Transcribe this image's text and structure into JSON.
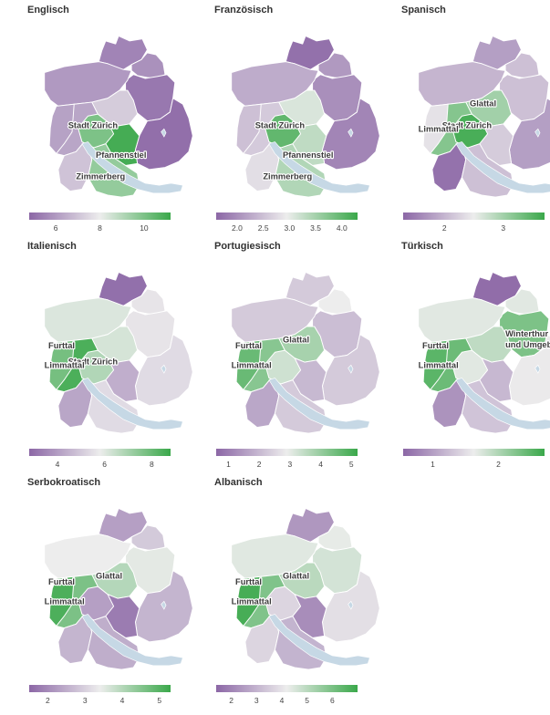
{
  "palette": {
    "low": "#8c67a6",
    "mid": "#ededed",
    "high": "#3aa84a"
  },
  "panels": [
    {
      "title": "Englisch",
      "scale": {
        "min": 4.8,
        "max": 11.2,
        "ticks": [
          6,
          8,
          10
        ]
      },
      "values": {
        "north": 5.5,
        "weinland": 5.8,
        "winterthur": 5.2,
        "unterland": 6.0,
        "furttal": 6.2,
        "glattal": 7.2,
        "limmattal": 6.3,
        "zurich": 10.0,
        "oberland": 5.0,
        "pfannenstiel": 11.0,
        "knonaueramt": 7.0,
        "zimmerberg": 9.6
      },
      "labels": [
        {
          "key": "zurich",
          "text": "Stadt Zürich"
        },
        {
          "key": "pfannenstiel",
          "text": "Pfannenstiel"
        },
        {
          "key": "zimmerberg",
          "text": "Zimmerberg"
        }
      ]
    },
    {
      "title": "Französisch",
      "scale": {
        "min": 1.6,
        "max": 4.3,
        "ticks": [
          "2.0",
          "2.5",
          "3.0",
          "3.5",
          "4.0"
        ]
      },
      "values": {
        "north": 1.7,
        "weinland": 2.1,
        "winterthur": 2.0,
        "unterland": 2.3,
        "furttal": 2.5,
        "glattal": 3.1,
        "limmattal": 2.6,
        "zurich": 4.0,
        "oberland": 1.9,
        "pfannenstiel": 3.3,
        "knonaueramt": 2.8,
        "zimmerberg": 3.4
      },
      "labels": [
        {
          "key": "zurich",
          "text": "Stadt Zürich"
        },
        {
          "key": "pfannenstiel",
          "text": "Pfannenstiel"
        },
        {
          "key": "zimmerberg",
          "text": "Zimmerberg"
        }
      ]
    },
    {
      "title": "Spanisch",
      "scale": {
        "min": 1.3,
        "max": 3.7,
        "ticks": [
          2,
          3
        ]
      },
      "values": {
        "north": 1.8,
        "weinland": 2.1,
        "winterthur": 2.1,
        "unterland": 2.0,
        "furttal": 2.4,
        "glattal": 3.0,
        "limmattal": 3.2,
        "zurich": 3.6,
        "oberland": 1.8,
        "pfannenstiel": 2.2,
        "knonaueramt": 1.4,
        "zimmerberg": 2.1
      },
      "labels": [
        {
          "key": "glattal",
          "text": "Glattal"
        },
        {
          "key": "zurich",
          "text": "Stadt Zürich"
        },
        {
          "key": "limmattal",
          "text": "Limmattal"
        }
      ]
    },
    {
      "title": "Italienisch",
      "scale": {
        "min": 2.8,
        "max": 8.8,
        "ticks": [
          4,
          6,
          8
        ]
      },
      "values": {
        "north": 3.0,
        "weinland": 5.6,
        "winterthur": 5.6,
        "unterland": 6.1,
        "furttal": 7.8,
        "glattal": 6.2,
        "limmattal": 8.5,
        "zurich": 6.8,
        "oberland": 5.4,
        "pfannenstiel": 4.4,
        "knonaueramt": 4.2,
        "zimmerberg": 5.4
      },
      "labels": [
        {
          "key": "furttal",
          "text": "Furttal"
        },
        {
          "key": "zurich",
          "text": "Stadt Zürich"
        },
        {
          "key": "limmattal",
          "text": "Limmattal"
        }
      ]
    },
    {
      "title": "Portugiesisch",
      "scale": {
        "min": 0.6,
        "max": 5.2,
        "ticks": [
          1,
          2,
          3,
          4,
          5
        ]
      },
      "values": {
        "north": 2.3,
        "weinland": 2.9,
        "winterthur": 2.1,
        "unterland": 2.3,
        "furttal": 4.6,
        "glattal": 3.8,
        "limmattal": 4.2,
        "zurich": 3.3,
        "oberland": 2.3,
        "pfannenstiel": 2.0,
        "knonaueramt": 1.7,
        "zimmerberg": 2.3
      },
      "labels": [
        {
          "key": "furttal",
          "text": "Furttal"
        },
        {
          "key": "glattal",
          "text": "Glattal"
        },
        {
          "key": "limmattal",
          "text": "Limmattal"
        }
      ]
    },
    {
      "title": "Türkisch",
      "scale": {
        "min": 0.55,
        "max": 2.7,
        "ticks": [
          1,
          2
        ]
      },
      "values": {
        "north": 0.6,
        "weinland": 1.7,
        "winterthur": 2.3,
        "unterland": 1.7,
        "furttal": 2.5,
        "glattal": 1.9,
        "limmattal": 2.4,
        "zurich": 1.7,
        "oberland": 1.6,
        "pfannenstiel": 1.2,
        "knonaueramt": 0.9,
        "zimmerberg": 1.3
      },
      "labels": [
        {
          "key": "winterthur",
          "text": "Winterthur"
        },
        {
          "key": "winterthur",
          "text": "und Umgebung"
        },
        {
          "key": "furttal",
          "text": "Furttal"
        },
        {
          "key": "limmattal",
          "text": "Limmattal"
        }
      ]
    },
    {
      "title": "Serbokroatisch",
      "scale": {
        "min": 1.5,
        "max": 5.3,
        "ticks": [
          2,
          3,
          4,
          5
        ]
      },
      "values": {
        "north": 2.3,
        "weinland": 2.9,
        "winterthur": 3.5,
        "unterland": 3.4,
        "furttal": 5.1,
        "glattal": 4.0,
        "limmattal": 4.6,
        "zurich": 2.3,
        "oberland": 2.6,
        "pfannenstiel": 1.8,
        "knonaueramt": 2.6,
        "zimmerberg": 2.5
      },
      "labels": [
        {
          "key": "furttal",
          "text": "Furttal"
        },
        {
          "key": "glattal",
          "text": "Glattal"
        },
        {
          "key": "limmattal",
          "text": "Limmattal"
        }
      ]
    },
    {
      "title": "Albanisch",
      "scale": {
        "min": 1.4,
        "max": 7.0,
        "ticks": [
          2,
          3,
          4,
          5,
          6
        ]
      },
      "values": {
        "north": 2.4,
        "weinland": 4.3,
        "winterthur": 4.6,
        "unterland": 4.4,
        "furttal": 6.8,
        "glattal": 5.0,
        "limmattal": 5.9,
        "zurich": 3.7,
        "oberland": 3.9,
        "pfannenstiel": 2.2,
        "knonaueramt": 3.7,
        "zimmerberg": 3.0
      },
      "labels": [
        {
          "key": "furttal",
          "text": "Furttal"
        },
        {
          "key": "glattal",
          "text": "Glattal"
        },
        {
          "key": "limmattal",
          "text": "Limmattal"
        }
      ]
    }
  ]
}
